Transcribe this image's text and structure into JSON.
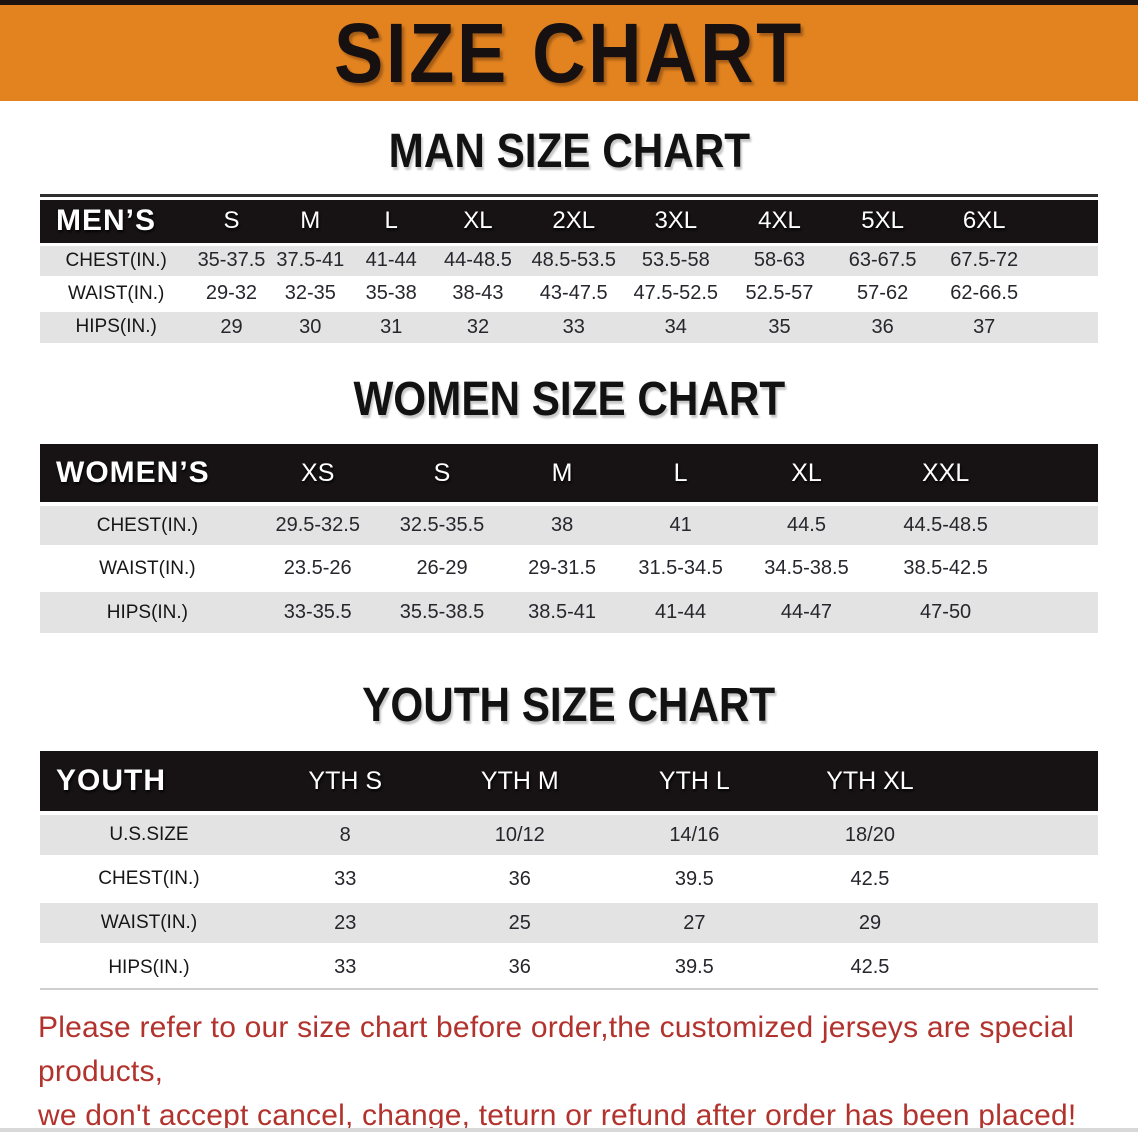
{
  "banner": {
    "title": "SIZE CHART"
  },
  "colors": {
    "banner_bg": "#E28320",
    "banner_text": "#171011",
    "header_bg": "#171213",
    "header_text": "#FFFFFF",
    "row_alt_bg": "#E3E3E3",
    "body_text": "#26262C",
    "title_text": "#121212",
    "note_text": "#B2332D",
    "top_rule": "#1D1310",
    "bottom_rule": "#D8D8D8"
  },
  "sections": [
    {
      "title": "MAN SIZE CHART",
      "table": {
        "label": "MEN’S",
        "columns": [
          "S",
          "M",
          "L",
          "XL",
          "2XL",
          "3XL",
          "4XL",
          "5XL",
          "6XL"
        ],
        "rows": [
          {
            "label": "CHEST(IN.)",
            "values": [
              "35-37.5",
              "37.5-41",
              "41-44",
              "44-48.5",
              "48.5-53.5",
              "53.5-58",
              "58-63",
              "63-67.5",
              "67.5-72"
            ]
          },
          {
            "label": "WAIST(IN.)",
            "values": [
              "29-32",
              "32-35",
              "35-38",
              "38-43",
              "43-47.5",
              "47.5-52.5",
              "52.5-57",
              "57-62",
              "62-66.5"
            ]
          },
          {
            "label": "HIPS(IN.)",
            "values": [
              "29",
              "30",
              "31",
              "32",
              "33",
              "34",
              "35",
              "36",
              "37"
            ]
          }
        ]
      }
    },
    {
      "title": "WOMEN SIZE CHART",
      "table": {
        "label": "WOMEN’S",
        "columns": [
          "XS",
          "S",
          "M",
          "L",
          "XL",
          "XXL"
        ],
        "rows": [
          {
            "label": "CHEST(IN.)",
            "values": [
              "29.5-32.5",
              "32.5-35.5",
              "38",
              "41",
              "44.5",
              "44.5-48.5"
            ]
          },
          {
            "label": "WAIST(IN.)",
            "values": [
              "23.5-26",
              "26-29",
              "29-31.5",
              "31.5-34.5",
              "34.5-38.5",
              "38.5-42.5"
            ]
          },
          {
            "label": "HIPS(IN.)",
            "values": [
              "33-35.5",
              "35.5-38.5",
              "38.5-41",
              "41-44",
              "44-47",
              "47-50"
            ]
          }
        ]
      }
    },
    {
      "title": "YOUTH SIZE CHART",
      "table": {
        "label": "YOUTH",
        "columns": [
          "YTH S",
          "YTH M",
          "YTH L",
          "YTH XL"
        ],
        "rows": [
          {
            "label": "U.S.SIZE",
            "values": [
              "8",
              "10/12",
              "14/16",
              "18/20"
            ]
          },
          {
            "label": "CHEST(IN.)",
            "values": [
              "33",
              "36",
              "39.5",
              "42.5"
            ]
          },
          {
            "label": "WAIST(IN.)",
            "values": [
              "23",
              "25",
              "27",
              "29"
            ]
          },
          {
            "label": "HIPS(IN.)",
            "values": [
              "33",
              "36",
              "39.5",
              "42.5"
            ]
          }
        ]
      }
    }
  ],
  "note": {
    "line1": "Please refer to our size chart before order,the customized jerseys are special products,",
    "line2": "we don't accept cancel, change, teturn or refund after order has been placed!"
  }
}
